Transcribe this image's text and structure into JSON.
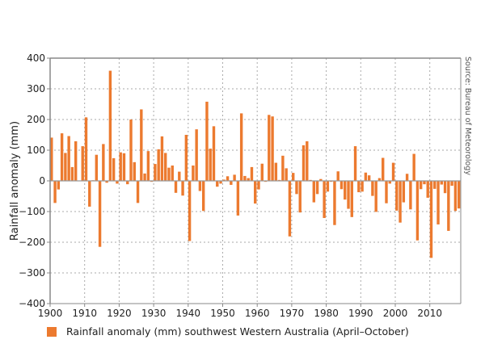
{
  "chart_data": {
    "type": "bar",
    "title": "",
    "xlabel": "",
    "ylabel": "Rainfall anomaly (mm)",
    "source": "Source: Bureau of Meteorology",
    "ylim": [
      -400,
      400
    ],
    "xlim": [
      1900,
      2018
    ],
    "yticks": [
      "400",
      "300",
      "200",
      "100",
      "0",
      "−100",
      "−200",
      "−300",
      "−400"
    ],
    "ytick_values": [
      400,
      300,
      200,
      100,
      0,
      -100,
      -200,
      -300,
      -400
    ],
    "xticks": [
      "1900",
      "1910",
      "1920",
      "1930",
      "1940",
      "1950",
      "1960",
      "1970",
      "1980",
      "1990",
      "2000",
      "2010"
    ],
    "xtick_values": [
      1900,
      1910,
      1920,
      1930,
      1940,
      1950,
      1960,
      1970,
      1980,
      1990,
      2000,
      2010
    ],
    "grid": true,
    "legend_placement": "bottom",
    "bar_color": "#ec7a2f",
    "start_year": 1900,
    "series": [
      {
        "name": "Rainfall anomaly (mm) southwest Western Australia (April–October)",
        "values": [
          141,
          -72,
          -28,
          155,
          91,
          146,
          45,
          129,
          0,
          113,
          207,
          -84,
          2,
          85,
          -215,
          120,
          -6,
          359,
          74,
          -9,
          93,
          90,
          -11,
          200,
          61,
          -72,
          233,
          24,
          97,
          -3,
          55,
          103,
          145,
          91,
          43,
          50,
          -39,
          30,
          -48,
          150,
          -196,
          50,
          168,
          -33,
          -98,
          258,
          105,
          178,
          -19,
          -9,
          4,
          15,
          -13,
          20,
          -113,
          220,
          16,
          9,
          45,
          -74,
          -28,
          56,
          -3,
          215,
          210,
          59,
          3,
          82,
          41,
          -181,
          26,
          -43,
          -103,
          116,
          129,
          3,
          -70,
          -43,
          6,
          -121,
          -35,
          -3,
          -144,
          31,
          -27,
          -61,
          -91,
          -118,
          113,
          -37,
          -35,
          27,
          18,
          -49,
          -101,
          9,
          75,
          -73,
          -9,
          59,
          -97,
          -136,
          -70,
          23,
          -93,
          88,
          -194,
          -27,
          -11,
          -55,
          -251,
          -26,
          -142,
          -12,
          -40,
          -163,
          -16,
          -98,
          -90
        ]
      }
    ]
  }
}
